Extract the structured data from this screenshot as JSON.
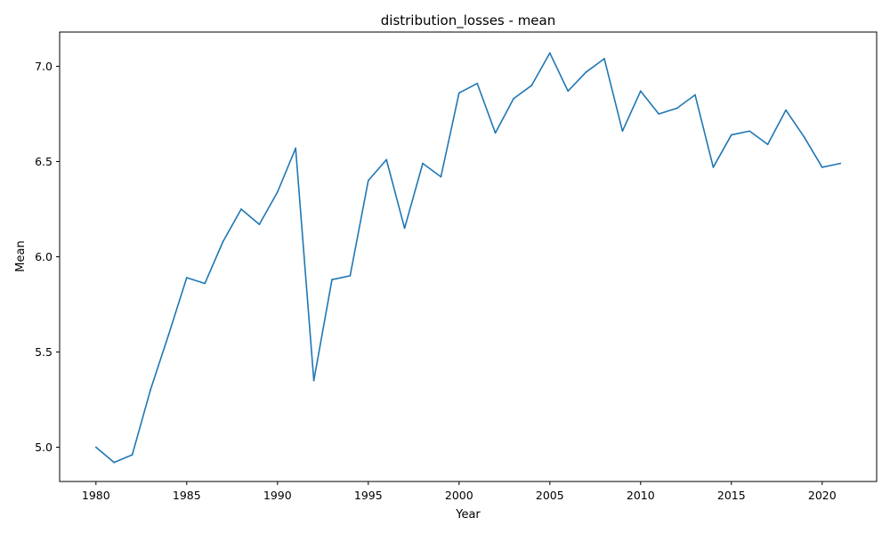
{
  "chart_data": {
    "type": "line",
    "title": "distribution_losses - mean",
    "xlabel": "Year",
    "ylabel": "Mean",
    "xlim": [
      1978,
      2023
    ],
    "ylim": [
      4.82,
      7.18
    ],
    "grid": false,
    "x_ticks": [
      1980,
      1985,
      1990,
      1995,
      2000,
      2005,
      2010,
      2015,
      2020
    ],
    "y_ticks": [
      5.0,
      5.5,
      6.0,
      6.5,
      7.0
    ],
    "y_tick_labels": [
      "5.0",
      "5.5",
      "6.0",
      "6.5",
      "7.0"
    ],
    "series": [
      {
        "color": "#1f77b4",
        "x": [
          1980,
          1981,
          1982,
          1983,
          1984,
          1985,
          1986,
          1987,
          1988,
          1989,
          1990,
          1991,
          1992,
          1993,
          1994,
          1995,
          1996,
          1997,
          1998,
          1999,
          2000,
          2001,
          2002,
          2003,
          2004,
          2005,
          2006,
          2007,
          2008,
          2009,
          2010,
          2011,
          2012,
          2013,
          2014,
          2015,
          2016,
          2017,
          2018,
          2019,
          2020,
          2021
        ],
        "values": [
          5.0,
          4.92,
          4.96,
          5.3,
          5.59,
          5.89,
          5.86,
          6.08,
          6.25,
          6.17,
          6.34,
          6.57,
          5.35,
          5.88,
          5.9,
          6.4,
          6.51,
          6.15,
          6.49,
          6.42,
          6.86,
          6.91,
          6.65,
          6.83,
          6.9,
          7.07,
          6.87,
          6.97,
          7.04,
          6.66,
          6.87,
          6.75,
          6.78,
          6.85,
          6.47,
          6.64,
          6.66,
          6.59,
          6.77,
          6.63,
          6.47,
          6.49
        ]
      }
    ]
  }
}
